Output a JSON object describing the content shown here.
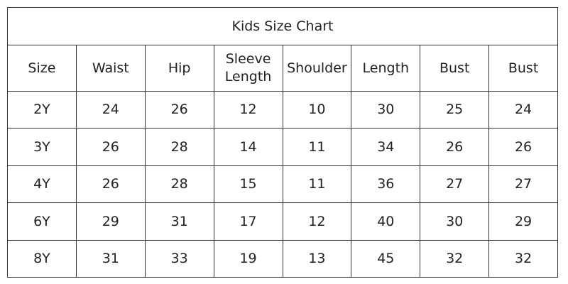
{
  "table": {
    "title": "Kids Size Chart",
    "header": [
      "Size",
      "Waist",
      "Hip",
      "Sleeve Length",
      "Shoulder",
      "Length",
      "Bust",
      "Bust"
    ],
    "rows": [
      [
        "2Y",
        24,
        26,
        12,
        10,
        30,
        25,
        24
      ],
      [
        "3Y",
        26,
        28,
        14,
        11,
        34,
        26,
        26
      ],
      [
        "4Y",
        26,
        28,
        15,
        11,
        36,
        27,
        27
      ],
      [
        "6Y",
        29,
        31,
        17,
        12,
        40,
        30,
        29
      ],
      [
        "8Y",
        31,
        33,
        19,
        13,
        45,
        32,
        32
      ]
    ]
  }
}
